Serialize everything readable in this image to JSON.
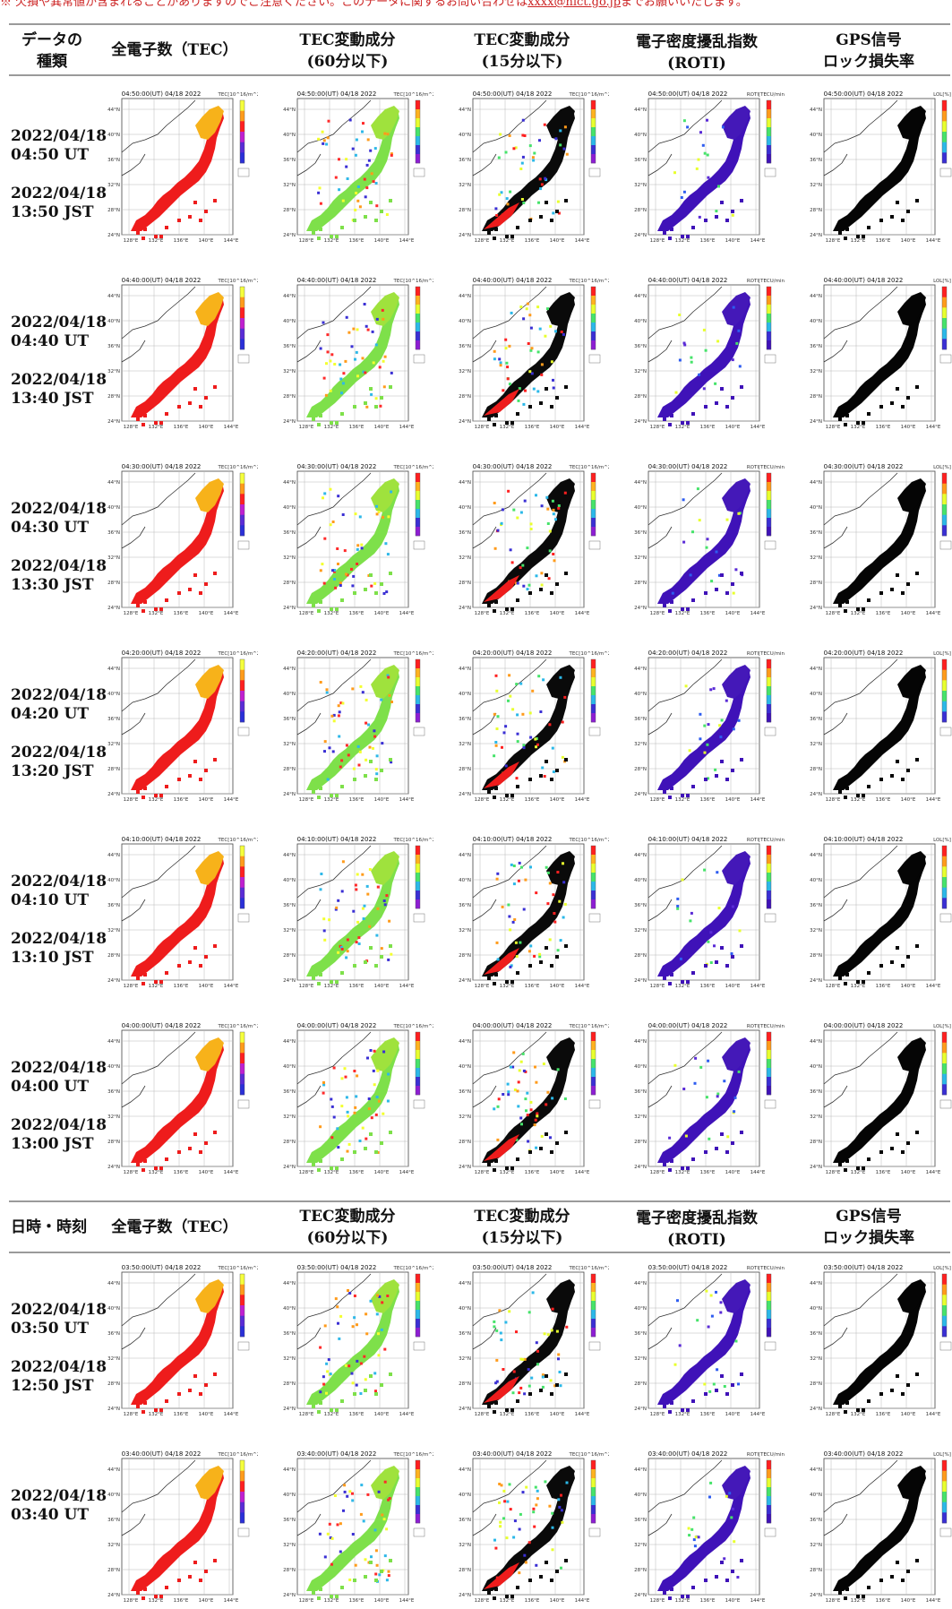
{
  "top_note": {
    "text": "※ 欠損や異常値が含まれることがありますのでご注意ください。このデータに関するお問い合わせは",
    "link": "xxxx@nict.go.jp",
    "suffix": "までお願いいたします。"
  },
  "header1": {
    "col0": [
      "データの",
      "種類"
    ],
    "col1": [
      "全電子数（TEC）"
    ],
    "col2": [
      "TEC変動成分",
      "(60分以下)"
    ],
    "col3": [
      "TEC変動成分",
      "(15分以下)"
    ],
    "col4": [
      "電子密度擾乱指数",
      "(ROTI)"
    ],
    "col5": [
      "GPS信号",
      "ロック損失率"
    ]
  },
  "header2": {
    "col0": [
      "日時・時刻"
    ],
    "col1": [
      "全電子数（TEC）"
    ],
    "col2": [
      "TEC変動成分",
      "(60分以下)"
    ],
    "col3": [
      "TEC変動成分",
      "(15分以下)"
    ],
    "col4": [
      "電子密度擾乱指数",
      "(ROTI)"
    ],
    "col5": [
      "GPS信号",
      "ロック損失率"
    ]
  },
  "rows": [
    {
      "ut_date": "2022/04/18",
      "ut_time": "04:50 UT",
      "jst_date": "2022/04/18",
      "jst_time": "13:50 JST",
      "map_title": "04:50:00(UT) 04/18 2022"
    },
    {
      "ut_date": "2022/04/18",
      "ut_time": "04:40 UT",
      "jst_date": "2022/04/18",
      "jst_time": "13:40 JST",
      "map_title": "04:40:00(UT) 04/18 2022"
    },
    {
      "ut_date": "2022/04/18",
      "ut_time": "04:30 UT",
      "jst_date": "2022/04/18",
      "jst_time": "13:30 JST",
      "map_title": "04:30:00(UT) 04/18 2022"
    },
    {
      "ut_date": "2022/04/18",
      "ut_time": "04:20 UT",
      "jst_date": "2022/04/18",
      "jst_time": "13:20 JST",
      "map_title": "04:20:00(UT) 04/18 2022"
    },
    {
      "ut_date": "2022/04/18",
      "ut_time": "04:10 UT",
      "jst_date": "2022/04/18",
      "jst_time": "13:10 JST",
      "map_title": "04:10:00(UT) 04/18 2022"
    },
    {
      "ut_date": "2022/04/18",
      "ut_time": "04:00 UT",
      "jst_date": "2022/04/18",
      "jst_time": "13:00 JST",
      "map_title": "04:00:00(UT) 04/18 2022"
    },
    {
      "ut_date": "2022/04/18",
      "ut_time": "03:50 UT",
      "jst_date": "2022/04/18",
      "jst_time": "12:50 JST",
      "map_title": "03:50:00(UT) 04/18 2022"
    },
    {
      "ut_date": "2022/04/18",
      "ut_time": "03:40 UT",
      "jst_date": "",
      "jst_time": "",
      "map_title": "03:40:00(UT) 04/18 2022"
    }
  ],
  "map_axes": {
    "lat_ticks": [
      "44°N",
      "40°N",
      "36°N",
      "32°N",
      "28°N",
      "24°N"
    ],
    "lon_ticks": [
      "128°E",
      "132°E",
      "136°E",
      "140°E",
      "144°E"
    ]
  },
  "map_types": [
    {
      "name": "tec",
      "fill": "#ee1c1c",
      "north": "#f7b21a",
      "colorbar": [
        "#f5ff3b",
        "#ff9b1b",
        "#ff2020",
        "#c01fd0",
        "#5a2bd6",
        "#2a2fd8"
      ],
      "unit": "TEC[10^16/m^2]"
    },
    {
      "name": "dtec60",
      "fill": "#7ee04a",
      "north": "#9fe23d",
      "colorbar": [
        "#ff1f1f",
        "#ffb21f",
        "#e8ff2e",
        "#46e36a",
        "#2bb8e8",
        "#3a2fd4",
        "#8d1dd3"
      ],
      "unit": "TEC[10^16/m^2]"
    },
    {
      "name": "dtec15",
      "fill": "#0a0a0a",
      "north": "#0a0a0a",
      "colorbar": [
        "#ff1f1f",
        "#ffb21f",
        "#e8ff2e",
        "#46e36a",
        "#2bb8e8",
        "#3a2fd4",
        "#8d1dd3"
      ],
      "unit": "TEC[10^16/m^2]"
    },
    {
      "name": "roti",
      "fill": "#3f12b8",
      "north": "#4418b8",
      "colorbar": [
        "#ff2020",
        "#ff9b1b",
        "#e8ff2e",
        "#46e36a",
        "#2bb8e8",
        "#3a2fd4",
        "#3f12b8"
      ],
      "unit": "ROTI[TECU/min]"
    },
    {
      "name": "lol",
      "fill": "#050505",
      "north": "#050505",
      "colorbar": [
        "#ff2020",
        "#ff9b1b",
        "#e8ff2e",
        "#46e36a",
        "#2bb8e8",
        "#3a2fd4"
      ],
      "unit": "LOL[%]"
    }
  ]
}
